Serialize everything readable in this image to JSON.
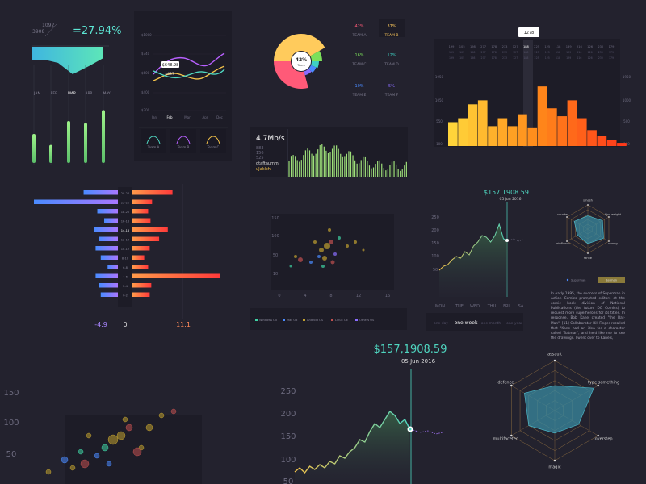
{
  "colors": {
    "bg": "#23222e",
    "panel": "#1d1c27",
    "accent_teal": "#4fd6c0",
    "accent_orange": "#ff8a3d",
    "accent_purple": "#9b6dff"
  },
  "kpi": {
    "num_a": "1092",
    "num_b": "3908",
    "percent": "=27.94%",
    "months": [
      "JAN",
      "FEB",
      "MAR",
      "APR",
      "MAY"
    ],
    "bars": [
      0.45,
      0.28,
      0.65,
      0.62,
      0.82
    ]
  },
  "lines": {
    "y_ticks": [
      "$1000",
      "$740",
      "$600",
      "$400",
      "$300"
    ],
    "x_ticks": [
      "Jan",
      "Feb",
      "Mar",
      "Apr",
      "Dec"
    ],
    "tooltip_a": "$648.98",
    "tooltip_b": "$437",
    "teams": [
      "Team A",
      "Team B",
      "Team C"
    ]
  },
  "donut": {
    "center_value": "42%",
    "center_label": "Team",
    "teams": [
      {
        "value": "42%",
        "name": "TEAM A",
        "color": "#ff5a78"
      },
      {
        "value": "37%",
        "name": "TEAM B",
        "color": "#ffcb5c"
      },
      {
        "value": "16%",
        "name": "TEAM C",
        "color": "#7be05a"
      },
      {
        "value": "12%",
        "name": "TEAM D",
        "color": "#3fd1c3"
      },
      {
        "value": "10%",
        "name": "TEAM E",
        "color": "#4a8bff"
      },
      {
        "value": "5%",
        "name": "TEAM F",
        "color": "#8a6dff"
      }
    ]
  },
  "speed": {
    "value": "4.7Mb/s",
    "stats": [
      "883",
      "156",
      "525"
    ],
    "label_a": "dtaftaumm",
    "label_b": "uJaklch"
  },
  "histogram": {
    "tooltip": "1278",
    "top_ticks": [
      "199",
      "105",
      "198",
      "277",
      "178",
      "213",
      "127",
      "188",
      "225",
      "125",
      "118",
      "139",
      "216",
      "126",
      "230",
      "179"
    ],
    "y_left": [
      "1950",
      "1050",
      "550",
      "100"
    ],
    "y_right": [
      "1950",
      "1000",
      "500",
      "100"
    ],
    "values": [
      600,
      700,
      1050,
      1150,
      500,
      700,
      500,
      800,
      450,
      1500,
      950,
      750,
      1150,
      700,
      400,
      250,
      150,
      80
    ]
  },
  "pyramid": {
    "labels": [
      "20-24",
      "22-22",
      "18-20",
      "16-18",
      "14-16",
      "12-14",
      "10-12",
      "8-10",
      "6-8",
      "4-6",
      "2-4",
      "0-2"
    ],
    "left": [
      2.0,
      4.9,
      1.2,
      0.8,
      1.4,
      1.1,
      1.3,
      1.0,
      0.6,
      1.3,
      1.1,
      1.0
    ],
    "right": [
      5.1,
      2.5,
      2.0,
      2.3,
      4.5,
      3.4,
      2.2,
      1.5,
      2.0,
      11.1,
      2.4,
      2.2
    ],
    "axis_left": "-4.9",
    "axis_mid": "0",
    "axis_right": "11.1"
  },
  "scatter_small": {
    "y_ticks": [
      "150",
      "100",
      "50",
      "10"
    ],
    "x_ticks": [
      "0",
      "4",
      "8",
      "12",
      "16"
    ],
    "legend": [
      "Windows Ox",
      "Mac Ox",
      "Android OS",
      "Linux Ox",
      "Others OS"
    ]
  },
  "area_small": {
    "value": "$157,1908.59",
    "date": "05 Jun 2016",
    "y_ticks": [
      "250",
      "200",
      "150",
      "100",
      "50"
    ],
    "days": [
      "MON",
      "TUE",
      "WED",
      "THU",
      "FRI",
      "SA"
    ],
    "tabs": [
      "one day",
      "one week",
      "one month",
      "one year"
    ]
  },
  "radar_small": {
    "axes": [
      "smash",
      "bjrd weight",
      "strong",
      "strike",
      "winfluoch",
      "counter"
    ],
    "legend": [
      "Superman",
      "Batman"
    ]
  },
  "paragraph": "In early 1995, the success of Superman in Action Comics prompted editors at the comic book division of National Publications (the future DC Comics) to request more superheroes for its titles. In response, Bob Kane created \"the Bat-Man\". [11] Collaborator Bill Finger recalled that \"Kane had an idea for a character called 'Batman', and he'd like me to see the drawings. I went over to Kane's,",
  "scatter_large": {
    "y_ticks": [
      "150",
      "100",
      "50"
    ]
  },
  "area_large": {
    "value": "$157,1908.59",
    "date": "05 Jun 2016",
    "y_ticks": [
      "250",
      "200",
      "150",
      "100",
      "50"
    ]
  },
  "radar_large": {
    "axes": [
      "assault",
      "type something",
      "overstep",
      "magic",
      "multifaceted",
      "defence"
    ]
  },
  "chart_data": [
    {
      "type": "bar",
      "title": "",
      "categories": [
        "JAN",
        "FEB",
        "MAR",
        "APR",
        "MAY"
      ],
      "values": [
        0.45,
        0.28,
        0.65,
        0.62,
        0.82
      ]
    },
    {
      "type": "line",
      "x": [
        "Jan",
        "Feb",
        "Mar",
        "Apr",
        "Dec"
      ],
      "series": [
        {
          "name": "Team A",
          "values": [
            600,
            540,
            620,
            580,
            660
          ]
        },
        {
          "name": "Team B",
          "values": [
            700,
            760,
            720,
            800,
            780
          ]
        },
        {
          "name": "Team C",
          "values": [
            560,
            600,
            540,
            610,
            590
          ]
        }
      ]
    },
    {
      "type": "pie",
      "categories": [
        "TEAM A",
        "TEAM B",
        "TEAM C",
        "TEAM D",
        "TEAM E",
        "TEAM F"
      ],
      "values": [
        42,
        37,
        16,
        12,
        10,
        5
      ]
    },
    {
      "type": "bar",
      "values": [
        600,
        700,
        1050,
        1150,
        500,
        700,
        500,
        800,
        450,
        1500,
        950,
        750,
        1150,
        700,
        400,
        250,
        150,
        80
      ],
      "ylim": [
        0,
        1950
      ]
    },
    {
      "type": "bar",
      "categories": [
        "20-24",
        "22-22",
        "18-20",
        "16-18",
        "14-16",
        "12-14",
        "10-12",
        "8-10",
        "6-8",
        "4-6",
        "2-4",
        "0-2"
      ],
      "series": [
        {
          "values": [
            -2.0,
            -4.9,
            -1.2,
            -0.8,
            -1.4,
            -1.1,
            -1.3,
            -1.0,
            -0.6,
            -1.3,
            -1.1,
            -1.0
          ]
        },
        {
          "values": [
            5.1,
            2.5,
            2.0,
            2.3,
            4.5,
            3.4,
            2.2,
            1.5,
            2.0,
            11.1,
            2.4,
            2.2
          ]
        }
      ],
      "xlim": [
        -4.9,
        11.1
      ]
    },
    {
      "type": "scatter",
      "ylim": [
        0,
        150
      ],
      "xlim": [
        0,
        16
      ]
    },
    {
      "type": "area",
      "y": [
        60,
        70,
        65,
        80,
        90,
        85,
        100,
        95,
        120,
        110,
        130,
        150,
        160,
        190,
        170,
        175
      ],
      "ylim": [
        50,
        250
      ]
    },
    {
      "type": "area",
      "y": [
        40,
        55,
        50,
        60,
        58,
        65,
        70,
        62,
        80,
        90,
        110,
        130,
        150,
        190,
        170,
        210
      ],
      "ylim": [
        50,
        250
      ]
    }
  ]
}
